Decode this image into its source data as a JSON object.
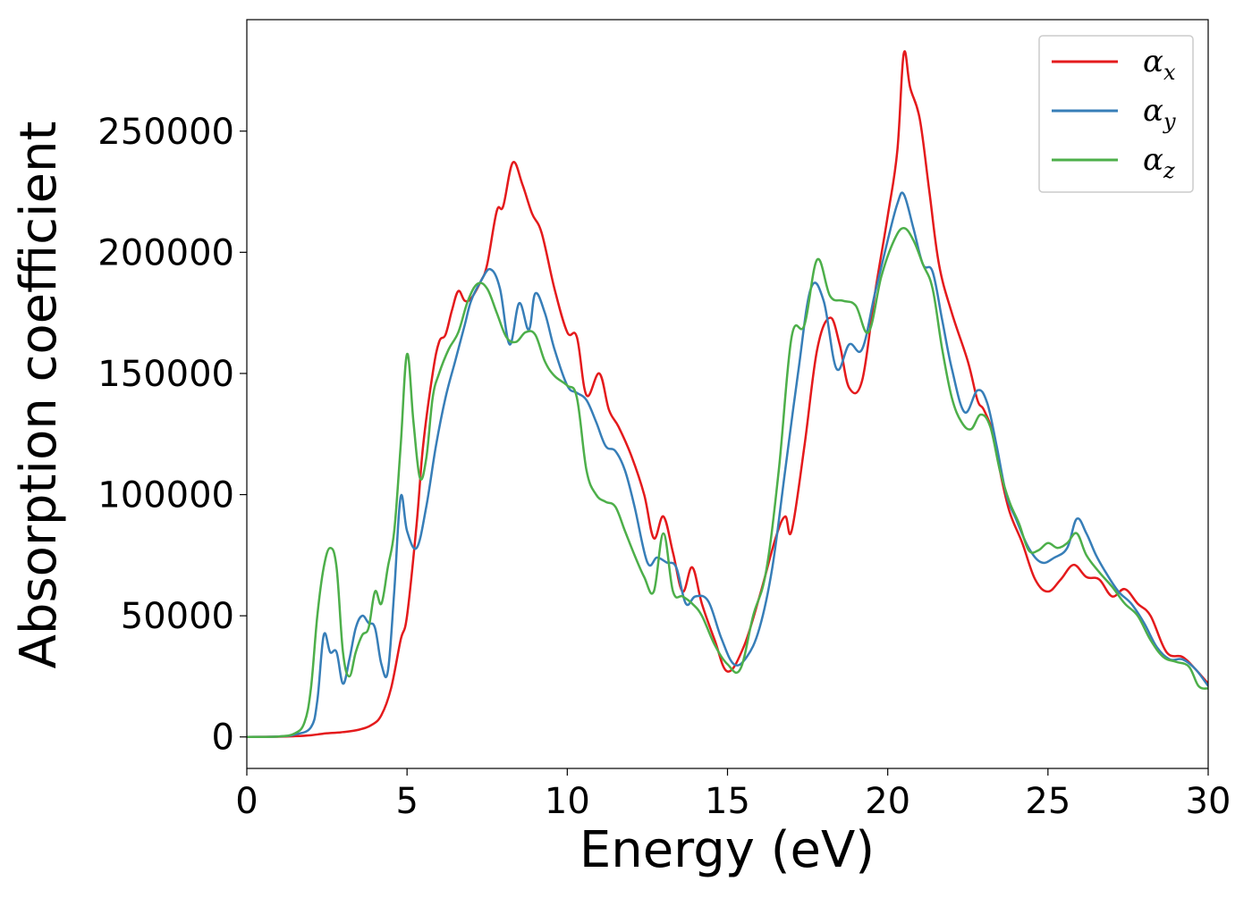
{
  "chart_data": {
    "type": "line",
    "xlabel": "Energy (eV)",
    "ylabel": "Absorption coefficient",
    "xlim": [
      0,
      30
    ],
    "ylim": [
      -13000,
      296000
    ],
    "xticks": [
      0,
      5,
      10,
      15,
      20,
      25,
      30
    ],
    "yticks": [
      0,
      50000,
      100000,
      150000,
      200000,
      250000
    ],
    "grid": false,
    "legend_position": "top-right",
    "series": [
      {
        "name": "αx",
        "legend_symbol": "α",
        "legend_subscript": "x",
        "color": "#e41a1c",
        "x": [
          0,
          1,
          1.5,
          2,
          2.3,
          2.5,
          3,
          3.5,
          3.9,
          4.2,
          4.5,
          4.8,
          5,
          5.3,
          5.5,
          5.8,
          6,
          6.2,
          6.4,
          6.6,
          6.8,
          7,
          7.3,
          7.5,
          7.8,
          8,
          8.3,
          8.6,
          8.9,
          9.2,
          9.6,
          10,
          10.3,
          10.6,
          11,
          11.3,
          11.6,
          12,
          12.4,
          12.7,
          13,
          13.3,
          13.6,
          13.9,
          14.2,
          14.6,
          15,
          15.5,
          16,
          16.5,
          16.8,
          17,
          17.4,
          17.8,
          18.2,
          18.5,
          18.8,
          19.2,
          19.6,
          20,
          20.3,
          20.5,
          20.7,
          21,
          21.3,
          21.6,
          22,
          22.5,
          22.8,
          23,
          23.3,
          23.5,
          23.8,
          24.2,
          24.6,
          25,
          25.4,
          25.8,
          26.2,
          26.6,
          27,
          27.4,
          27.8,
          28.2,
          28.7,
          29.2,
          29.6,
          30
        ],
        "values": [
          0,
          100,
          300,
          700,
          1200,
          1500,
          2000,
          3000,
          5000,
          9000,
          20000,
          40000,
          50000,
          88000,
          120000,
          150000,
          163000,
          166000,
          176000,
          184000,
          180000,
          181000,
          188000,
          195000,
          217000,
          219000,
          237000,
          228000,
          216000,
          208000,
          185000,
          167000,
          165000,
          141000,
          150000,
          135000,
          128000,
          116000,
          100000,
          82000,
          91000,
          76000,
          60000,
          70000,
          55000,
          40000,
          27000,
          37000,
          58000,
          82000,
          91000,
          85000,
          120000,
          160000,
          173000,
          162000,
          144000,
          147000,
          183000,
          215000,
          242000,
          282000,
          268000,
          255000,
          225000,
          195000,
          175000,
          155000,
          139000,
          135000,
          125000,
          110000,
          93000,
          80000,
          65000,
          60000,
          65000,
          71000,
          66000,
          65000,
          58000,
          61000,
          55000,
          50000,
          35000,
          33000,
          28000,
          22000
        ]
      },
      {
        "name": "αy",
        "legend_symbol": "α",
        "legend_subscript": "y",
        "color": "#377eb8",
        "x": [
          0,
          1,
          1.5,
          2,
          2.2,
          2.4,
          2.6,
          2.8,
          3,
          3.2,
          3.4,
          3.6,
          3.8,
          4,
          4.2,
          4.4,
          4.6,
          4.8,
          5,
          5.3,
          5.6,
          5.9,
          6.2,
          6.5,
          6.8,
          7,
          7.3,
          7.6,
          7.9,
          8.2,
          8.5,
          8.8,
          9,
          9.3,
          9.6,
          10,
          10.3,
          10.6,
          10.9,
          11.2,
          11.5,
          11.8,
          12.1,
          12.5,
          12.8,
          13.1,
          13.4,
          13.7,
          14,
          14.4,
          14.8,
          15.2,
          15.6,
          16,
          16.4,
          16.8,
          17.2,
          17.6,
          18,
          18.4,
          18.8,
          19.2,
          19.6,
          20,
          20.3,
          20.5,
          20.8,
          21.1,
          21.4,
          21.7,
          22,
          22.4,
          22.8,
          23.1,
          23.4,
          23.7,
          24,
          24.4,
          24.8,
          25.2,
          25.6,
          25.9,
          26.2,
          26.5,
          26.8,
          27.2,
          27.6,
          28,
          28.4,
          28.8,
          29.2,
          29.6,
          30
        ],
        "values": [
          0,
          200,
          1000,
          4000,
          15000,
          42000,
          35000,
          35000,
          22000,
          32000,
          45000,
          50000,
          47000,
          45000,
          30000,
          27000,
          60000,
          99000,
          85000,
          78000,
          95000,
          120000,
          140000,
          155000,
          170000,
          180000,
          188000,
          193000,
          185000,
          162000,
          179000,
          168000,
          183000,
          175000,
          160000,
          145000,
          142000,
          139000,
          130000,
          120000,
          118000,
          110000,
          95000,
          72000,
          74000,
          72000,
          70000,
          55000,
          58000,
          56000,
          41000,
          30000,
          33000,
          45000,
          70000,
          110000,
          150000,
          185000,
          180000,
          152000,
          162000,
          160000,
          183000,
          205000,
          220000,
          224000,
          210000,
          195000,
          192000,
          172000,
          152000,
          134000,
          143000,
          138000,
          120000,
          100000,
          90000,
          78000,
          72000,
          74000,
          78000,
          90000,
          84000,
          75000,
          68000,
          60000,
          55000,
          47000,
          37000,
          32000,
          32000,
          28000,
          21000
        ]
      },
      {
        "name": "αz",
        "legend_symbol": "α",
        "legend_subscript": "z",
        "color": "#4daf4a",
        "x": [
          0,
          1,
          1.5,
          1.8,
          2,
          2.2,
          2.4,
          2.6,
          2.8,
          3,
          3.2,
          3.4,
          3.6,
          3.8,
          4,
          4.2,
          4.4,
          4.6,
          4.8,
          5,
          5.2,
          5.4,
          5.6,
          5.8,
          6,
          6.3,
          6.6,
          6.9,
          7.2,
          7.5,
          7.8,
          8.1,
          8.4,
          8.7,
          9,
          9.3,
          9.6,
          10,
          10.3,
          10.6,
          10.9,
          11.2,
          11.5,
          11.8,
          12.1,
          12.4,
          12.7,
          13,
          13.3,
          13.6,
          13.9,
          14.2,
          14.6,
          15,
          15.4,
          15.8,
          16.2,
          16.6,
          17,
          17.4,
          17.8,
          18.2,
          18.6,
          19,
          19.4,
          19.8,
          20.2,
          20.5,
          20.8,
          21.1,
          21.4,
          21.7,
          22,
          22.3,
          22.6,
          22.9,
          23.2,
          23.5,
          23.8,
          24.1,
          24.4,
          24.7,
          25,
          25.3,
          25.6,
          25.9,
          26.2,
          26.6,
          27,
          27.4,
          27.8,
          28.2,
          28.6,
          29,
          29.4,
          29.7,
          30
        ],
        "values": [
          0,
          200,
          1500,
          6000,
          20000,
          50000,
          70000,
          78000,
          70000,
          35000,
          25000,
          35000,
          42000,
          45000,
          60000,
          55000,
          70000,
          85000,
          120000,
          158000,
          130000,
          107000,
          115000,
          140000,
          150000,
          160000,
          167000,
          180000,
          187000,
          185000,
          175000,
          165000,
          163000,
          167000,
          166000,
          155000,
          149000,
          145000,
          140000,
          110000,
          100000,
          97000,
          95000,
          85000,
          75000,
          66000,
          60000,
          84000,
          60000,
          58000,
          55000,
          50000,
          38000,
          30000,
          28000,
          50000,
          68000,
          110000,
          165000,
          170000,
          197000,
          182000,
          180000,
          178000,
          167000,
          190000,
          205000,
          210000,
          205000,
          195000,
          185000,
          160000,
          140000,
          130000,
          127000,
          133000,
          128000,
          110000,
          97000,
          88000,
          77000,
          77000,
          80000,
          78000,
          80000,
          84000,
          75000,
          68000,
          62000,
          55000,
          50000,
          40000,
          33000,
          31000,
          29000,
          21000,
          20000
        ]
      }
    ]
  }
}
